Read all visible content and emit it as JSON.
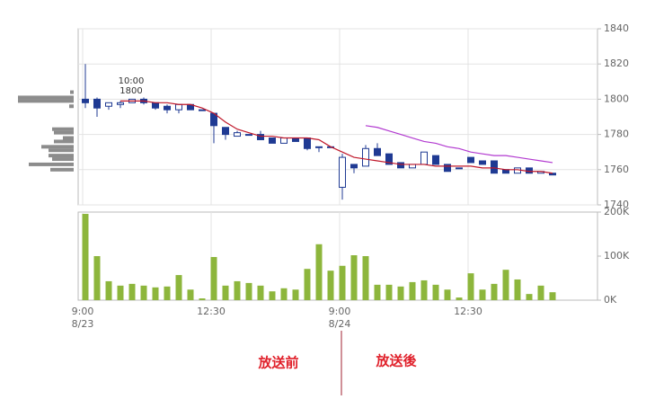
{
  "chart_data": {
    "type": "candlestick",
    "candles": {
      "up_color": "#ffffff",
      "down_color": "#1f3a93",
      "outline_color": "#1f3a93",
      "open": [
        1800,
        1800,
        1796,
        1797,
        1798,
        1800,
        1798,
        1796,
        1794,
        1797,
        1794,
        1792,
        1784,
        1779,
        1780,
        1780,
        1778,
        1775,
        1778,
        1778,
        1773,
        1773,
        1750,
        1763,
        1762,
        1772,
        1769,
        1764,
        1761,
        1763,
        1768,
        1763,
        1761,
        1767,
        1765,
        1765,
        1760,
        1758,
        1761,
        1758,
        1758
      ],
      "high": [
        1820,
        1801,
        1798,
        1799,
        1800,
        1801,
        1798,
        1797,
        1797,
        1797,
        1794,
        1792,
        1784,
        1782,
        1780,
        1782,
        1778,
        1778,
        1778,
        1778,
        1773,
        1773,
        1769,
        1763,
        1774,
        1775,
        1769,
        1764,
        1763,
        1770,
        1768,
        1763,
        1761,
        1767,
        1765,
        1765,
        1760,
        1761,
        1761,
        1759,
        1758
      ],
      "low": [
        1795,
        1790,
        1794,
        1795,
        1798,
        1797,
        1794,
        1792,
        1792,
        1794,
        1794,
        1775,
        1777,
        1779,
        1780,
        1777,
        1775,
        1775,
        1776,
        1771,
        1770,
        1773,
        1743,
        1758,
        1762,
        1768,
        1763,
        1761,
        1761,
        1763,
        1763,
        1759,
        1761,
        1764,
        1763,
        1758,
        1758,
        1758,
        1758,
        1758,
        1757
      ],
      "close": [
        1798,
        1795,
        1798,
        1798,
        1800,
        1798,
        1795,
        1794,
        1797,
        1794,
        1794,
        1785,
        1780,
        1781,
        1780,
        1777,
        1775,
        1778,
        1776,
        1772,
        1773,
        1773,
        1767,
        1761,
        1772,
        1768,
        1763,
        1761,
        1763,
        1770,
        1763,
        1759,
        1761,
        1764,
        1763,
        1758,
        1758,
        1761,
        1758,
        1759,
        1757
      ]
    },
    "moving_averages": [
      {
        "color": "#c0182a",
        "values": [
          null,
          null,
          null,
          1799,
          1799,
          1799,
          1798,
          1798,
          1797,
          1797,
          1795,
          1792,
          1787,
          1783,
          1781,
          1779,
          1779,
          1778,
          1778,
          1778,
          1777,
          1773,
          1770,
          1767,
          1766,
          1765,
          1764,
          1763,
          1763,
          1763,
          1762,
          1762,
          1762,
          1762,
          1761,
          1761,
          1760,
          1760,
          1759,
          1759,
          1758
        ]
      },
      {
        "color": "#b23ad0",
        "values": [
          null,
          null,
          null,
          null,
          null,
          null,
          null,
          null,
          null,
          null,
          null,
          null,
          null,
          null,
          null,
          null,
          null,
          null,
          null,
          null,
          null,
          null,
          null,
          null,
          1785,
          1784,
          1782,
          1780,
          1778,
          1776,
          1775,
          1773,
          1772,
          1770,
          1769,
          1768,
          1768,
          1767,
          1766,
          1765,
          1764
        ]
      }
    ],
    "volume": {
      "color": "#8db63c",
      "values": [
        196,
        100,
        43,
        33,
        37,
        33,
        29,
        31,
        57,
        24,
        4,
        98,
        33,
        43,
        39,
        33,
        20,
        27,
        24,
        71,
        127,
        67,
        78,
        102,
        100,
        35,
        35,
        31,
        41,
        45,
        35,
        24,
        6,
        61,
        24,
        37,
        69,
        47,
        14,
        33,
        18
      ]
    },
    "profile": {
      "color": "#8c8c8c",
      "prices": [
        1804,
        1801,
        1799,
        1796,
        1783,
        1781,
        1778,
        1776,
        1773,
        1771,
        1768,
        1766,
        1763,
        1760
      ],
      "values": [
        4,
        62,
        62,
        5,
        24,
        22,
        12,
        22,
        36,
        28,
        28,
        24,
        50,
        26
      ]
    },
    "ylim": [
      1740,
      1840
    ],
    "yticks": [
      1740,
      1760,
      1780,
      1800,
      1820,
      1840
    ],
    "y2lim": [
      0,
      200
    ],
    "y2ticks": [
      {
        "value": 0,
        "label": "0K"
      },
      {
        "value": 100,
        "label": "100K"
      },
      {
        "value": 200,
        "label": "200K"
      }
    ],
    "xticks": [
      {
        "value": 0,
        "label": "9:00"
      },
      {
        "value": 11,
        "label": "12:30"
      },
      {
        "value": 22,
        "label": "9:00"
      },
      {
        "value": 33,
        "label": "12:30"
      }
    ],
    "dates": [
      {
        "value": 0,
        "label": "8/23"
      },
      {
        "value": 22,
        "label": "8/24"
      }
    ],
    "annotation": {
      "time": "10:00",
      "price": 1800
    },
    "before_label": "放送前",
    "after_label": "放送後",
    "label_color": "#e0202a"
  }
}
